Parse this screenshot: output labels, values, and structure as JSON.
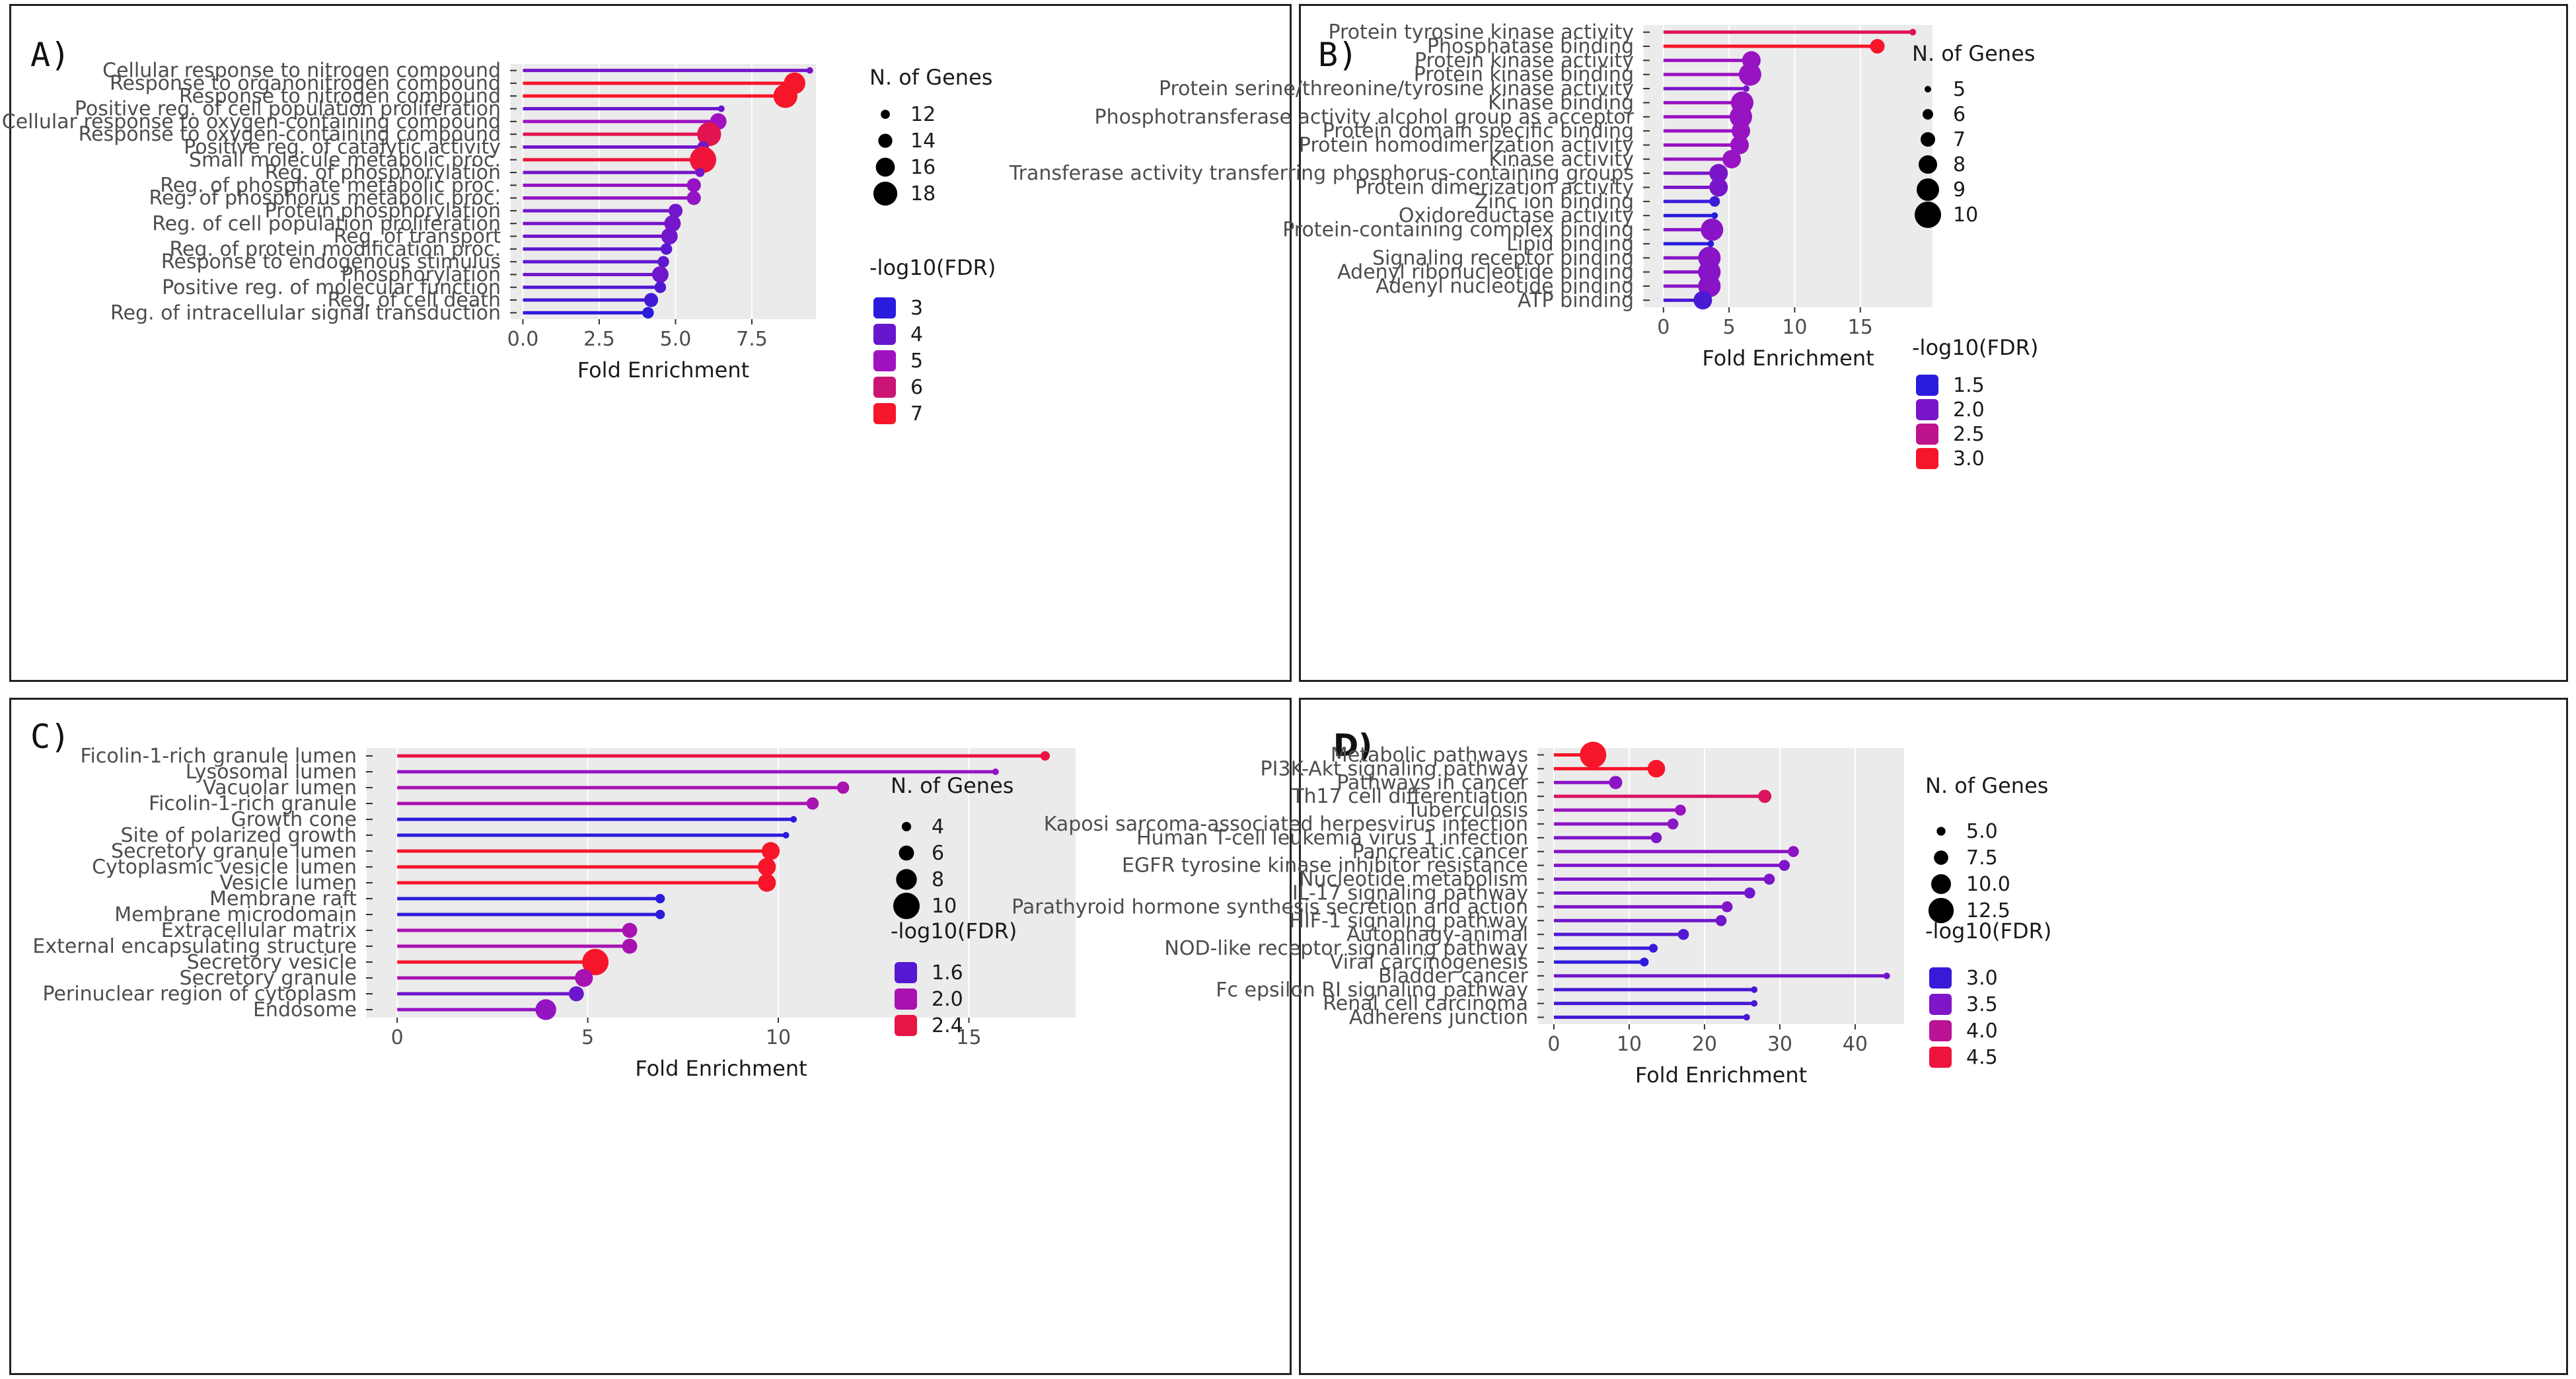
{
  "chart_data": [
    {
      "panel": "A)",
      "type": "lollipop",
      "xlabel": "Fold Enrichment",
      "xlim": [
        -0.4,
        9.6
      ],
      "xticks": [
        "0.0",
        "2.5",
        "5.0",
        "7.5"
      ],
      "categories": [
        "Cellular response to nitrogen compound",
        "Response to organonitrogen compound",
        "Response to nitrogen compound",
        "Positive reg. of cell population proliferation",
        "Cellular response to oxygen-containing compound",
        "Response to oxygen-containing compound",
        "Positive reg. of catalytic activity",
        "Small molecule metabolic proc.",
        "Reg. of phosphorylation",
        "Reg. of phosphate metabolic proc.",
        "Reg. of phosphorus metabolic proc.",
        "Protein phosphorylation",
        "Reg. of cell population proliferation",
        "Reg. of transport",
        "Reg. of protein modification proc.",
        "Response to endogenous stimulus",
        "Phosphorylation",
        "Positive reg. of molecular function",
        "Reg. of cell death",
        "Reg. of intracellular signal transduction"
      ],
      "values": [
        9.4,
        8.9,
        8.6,
        6.5,
        6.4,
        6.1,
        5.9,
        5.9,
        5.8,
        5.6,
        5.6,
        5.0,
        4.9,
        4.8,
        4.7,
        4.6,
        4.5,
        4.5,
        4.2,
        4.1
      ],
      "genes": [
        11,
        17,
        18,
        11,
        15,
        18,
        13,
        19,
        12,
        14,
        14,
        14,
        15,
        15,
        13,
        13,
        15,
        13,
        14,
        13
      ],
      "fdr": [
        4.3,
        7.0,
        7.0,
        4.0,
        5.0,
        6.5,
        4.2,
        6.8,
        4.3,
        4.8,
        4.8,
        4.2,
        4.3,
        4.2,
        3.8,
        3.9,
        4.2,
        3.6,
        3.4,
        3.0
      ],
      "size_legend": {
        "title": "N. of Genes",
        "labels": [
          "12",
          "14",
          "16",
          "18"
        ],
        "values": [
          12,
          14,
          16,
          18
        ],
        "range": [
          11,
          19
        ]
      },
      "color_legend": {
        "title": "-log10(FDR)",
        "labels": [
          "3",
          "4",
          "5",
          "6",
          "7"
        ],
        "values": [
          3,
          4,
          5,
          6,
          7
        ],
        "range": [
          3,
          7
        ]
      }
    },
    {
      "panel": "B)",
      "type": "lollipop",
      "xlabel": "Fold Enrichment",
      "xlim": [
        -1.5,
        20.5
      ],
      "xticks": [
        "0",
        "5",
        "10",
        "15"
      ],
      "categories": [
        "Protein tyrosine kinase activity",
        "Phosphatase binding",
        "Protein kinase activity",
        "Protein kinase binding",
        "Protein serine/threonine/tyrosine kinase activity",
        "Kinase binding",
        "Phosphotransferase activity alcohol group as acceptor",
        "Protein domain specific binding",
        "Protein homodimerization activity",
        "Kinase activity",
        "Transferase activity transferring phosphorus-containing groups",
        "Protein dimerization activity",
        "Zinc ion binding",
        "Oxidoreductase activity",
        "Protein-containing complex binding",
        "Lipid binding",
        "Signaling receptor binding",
        "Adenyl ribonucleotide binding",
        "Adenyl nucleotide binding",
        "ATP binding"
      ],
      "values": [
        19.0,
        16.3,
        6.7,
        6.6,
        6.3,
        6.0,
        5.9,
        5.9,
        5.8,
        5.2,
        4.2,
        4.2,
        3.9,
        3.9,
        3.7,
        3.6,
        3.5,
        3.5,
        3.5,
        3.0
      ],
      "genes": [
        5,
        7,
        8,
        9,
        5,
        9,
        9,
        8,
        8,
        8,
        8,
        8,
        6,
        5,
        9,
        5,
        9,
        9,
        9,
        8
      ],
      "fdr": [
        2.8,
        3.0,
        2.2,
        2.2,
        2.0,
        2.2,
        2.2,
        2.2,
        2.2,
        2.2,
        2.0,
        2.0,
        1.6,
        1.5,
        2.1,
        1.5,
        2.1,
        2.1,
        2.1,
        1.7
      ],
      "size_legend": {
        "title": "N. of Genes",
        "labels": [
          "5",
          "6",
          "7",
          "8",
          "9",
          "10"
        ],
        "values": [
          5,
          6,
          7,
          8,
          9,
          10
        ],
        "range": [
          5,
          10
        ]
      },
      "color_legend": {
        "title": "-log10(FDR)",
        "labels": [
          "1.5",
          "2.0",
          "2.5",
          "3.0"
        ],
        "values": [
          1.5,
          2.0,
          2.5,
          3.0
        ],
        "range": [
          1.5,
          3.0
        ]
      }
    },
    {
      "panel": "C)",
      "type": "lollipop",
      "xlabel": "Fold Enrichment",
      "xlim": [
        -0.8,
        17.8
      ],
      "xticks": [
        "0",
        "5",
        "10",
        "15"
      ],
      "categories": [
        "Ficolin-1-rich granule lumen",
        "Lysosomal lumen",
        "Vacuolar lumen",
        "Ficolin-1-rich granule",
        "Growth cone",
        "Site of polarized growth",
        "Secretory granule lumen",
        "Cytoplasmic vesicle lumen",
        "Vesicle lumen",
        "Membrane raft",
        "Membrane microdomain",
        "Extracellular matrix",
        "External encapsulating structure",
        "Secretory vesicle",
        "Secretory granule",
        "Perinuclear region of cytoplasm",
        "Endosome"
      ],
      "values": [
        17.0,
        15.7,
        11.7,
        10.9,
        10.4,
        10.2,
        9.8,
        9.7,
        9.7,
        6.9,
        6.9,
        6.1,
        6.1,
        5.2,
        4.9,
        4.7,
        3.9
      ],
      "genes": [
        4,
        3,
        5,
        5,
        3,
        3,
        7,
        7,
        7,
        4,
        4,
        6,
        6,
        10,
        7,
        6,
        8
      ],
      "fdr": [
        2.4,
        1.9,
        2.0,
        2.0,
        1.4,
        1.4,
        2.5,
        2.5,
        2.5,
        1.4,
        1.4,
        2.0,
        2.0,
        2.5,
        2.0,
        1.7,
        1.9
      ],
      "size_legend": {
        "title": "N. of Genes",
        "labels": [
          "4",
          "6",
          "8",
          "10"
        ],
        "values": [
          4,
          6,
          8,
          10
        ],
        "range": [
          3,
          10
        ]
      },
      "color_legend": {
        "title": "-log10(FDR)",
        "labels": [
          "1.6",
          "2.0",
          "2.4"
        ],
        "values": [
          1.6,
          2.0,
          2.4
        ],
        "range": [
          1.4,
          2.5
        ]
      }
    },
    {
      "panel": "D)",
      "type": "lollipop",
      "xlabel": "Fold Enrichment",
      "xlim": [
        -2.1,
        46.5
      ],
      "xticks": [
        "0",
        "10",
        "20",
        "30",
        "40"
      ],
      "categories": [
        "Metabolic pathways",
        "PI3K-Akt signaling pathway",
        "Pathways in cancer",
        "Th17 cell differentiation",
        "Tuberculosis",
        "Kaposi sarcoma-associated herpesvirus infection",
        "Human T-cell leukemia virus 1 infection",
        "Pancreatic cancer",
        "EGFR tyrosine kinase inhibitor resistance",
        "Nucleotide metabolism",
        "IL-17 signaling pathway",
        "Parathyroid hormone synthesis secretion and action",
        "HIF-1 signaling pathway",
        "Autophagy-animal",
        "NOD-like receptor signaling pathway",
        "Viral carcinogenesis",
        "Bladder cancer",
        "Fc epsilon RI signaling pathway",
        "Renal cell carcinoma",
        "Adherens junction"
      ],
      "values": [
        5.2,
        13.6,
        8.2,
        28.0,
        16.8,
        15.8,
        13.6,
        31.8,
        30.6,
        28.6,
        26.0,
        23.0,
        22.2,
        17.2,
        13.2,
        12.0,
        44.2,
        26.6,
        26.6,
        25.6
      ],
      "genes": [
        13,
        9,
        7,
        7,
        6,
        6,
        6,
        6,
        6,
        6,
        6,
        6,
        6,
        6,
        5,
        5,
        4,
        4,
        4,
        4
      ],
      "fdr": [
        4.6,
        4.6,
        3.6,
        4.3,
        3.7,
        3.6,
        3.5,
        3.6,
        3.5,
        3.5,
        3.4,
        3.5,
        3.4,
        3.2,
        3.0,
        2.9,
        3.4,
        3.1,
        3.1,
        3.1
      ],
      "size_legend": {
        "title": "N. of Genes",
        "labels": [
          "5.0",
          "7.5",
          "10.0",
          "12.5"
        ],
        "values": [
          5.0,
          7.5,
          10.0,
          12.5
        ],
        "range": [
          4,
          13
        ]
      },
      "color_legend": {
        "title": "-log10(FDR)",
        "labels": [
          "3.0",
          "3.5",
          "4.0",
          "4.5"
        ],
        "values": [
          3.0,
          3.5,
          4.0,
          4.5
        ],
        "range": [
          2.9,
          4.6
        ]
      }
    }
  ],
  "colors": {
    "low": "#2b1bdc",
    "mid": "#a012bf",
    "high": "#f7152a",
    "panel_bg": "#ebebeb"
  }
}
